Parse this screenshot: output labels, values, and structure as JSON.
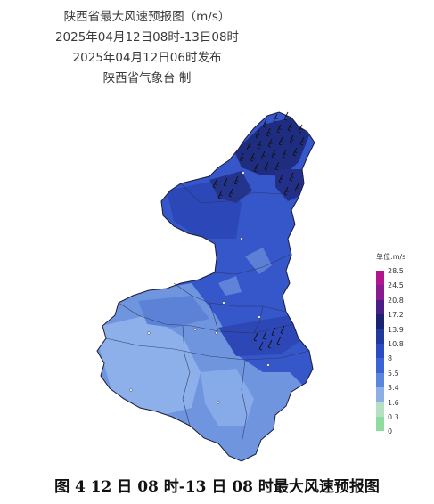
{
  "header": {
    "title": "陕西省最大风速预报图（m/s）",
    "valid_period": "2025年04月12日08时-13日08时",
    "issue_time": "2025年04月12日06时发布",
    "issuer": "陕西省气象台 制"
  },
  "legend": {
    "title": "单位:m/s",
    "levels": [
      {
        "label": "28.5",
        "color": "#b0178c"
      },
      {
        "label": "24.5",
        "color": "#8a1a90"
      },
      {
        "label": "20.8",
        "color": "#4a1e85"
      },
      {
        "label": "17.2",
        "color": "#1a2372"
      },
      {
        "label": "13.9",
        "color": "#1f3a9b"
      },
      {
        "label": "10.8",
        "color": "#2b4cc0"
      },
      {
        "label": "8",
        "color": "#3b63d6"
      },
      {
        "label": "5.5",
        "color": "#5a86de"
      },
      {
        "label": "3.4",
        "color": "#8cb0e6"
      },
      {
        "label": "1.6",
        "color": "#b7e0c3"
      },
      {
        "label": "0.3",
        "color": "#90dca0"
      },
      {
        "label": "0",
        "color": ""
      }
    ]
  },
  "map": {
    "region": "陕西省",
    "base_color": "#3557c9",
    "north_core_color": "#1f2d80",
    "south_light_color": "#7ea3e5",
    "wind_barb_color": "#111111"
  },
  "caption": "图 4 12 日 08 时-13 日 08 时最大风速预报图"
}
